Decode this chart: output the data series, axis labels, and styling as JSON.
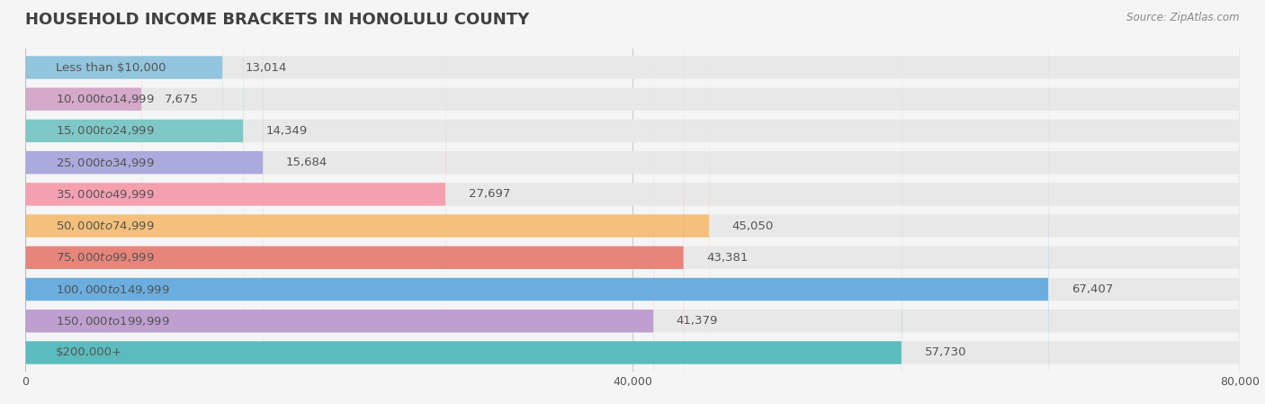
{
  "title": "HOUSEHOLD INCOME BRACKETS IN HONOLULU COUNTY",
  "source": "Source: ZipAtlas.com",
  "categories": [
    "Less than $10,000",
    "$10,000 to $14,999",
    "$15,000 to $24,999",
    "$25,000 to $34,999",
    "$35,000 to $49,999",
    "$50,000 to $74,999",
    "$75,000 to $99,999",
    "$100,000 to $149,999",
    "$150,000 to $199,999",
    "$200,000+"
  ],
  "values": [
    13014,
    7675,
    14349,
    15684,
    27697,
    45050,
    43381,
    67407,
    41379,
    57730
  ],
  "bar_colors": [
    "#92C5DE",
    "#D4A9C9",
    "#7EC8C8",
    "#AAAADD",
    "#F4A0B0",
    "#F4C07A",
    "#E8857A",
    "#6AAEE0",
    "#BF9FD0",
    "#5BBCBF"
  ],
  "xlim": [
    0,
    80000
  ],
  "xticks": [
    0,
    40000,
    80000
  ],
  "xtick_labels": [
    "0",
    "40,000",
    "80,000"
  ],
  "bg_color": "#f5f5f5",
  "bar_bg_color": "#e8e8e8",
  "title_color": "#404040",
  "label_color": "#555555",
  "value_color_inside": "#ffffff",
  "value_color_outside": "#555555",
  "source_color": "#888888"
}
